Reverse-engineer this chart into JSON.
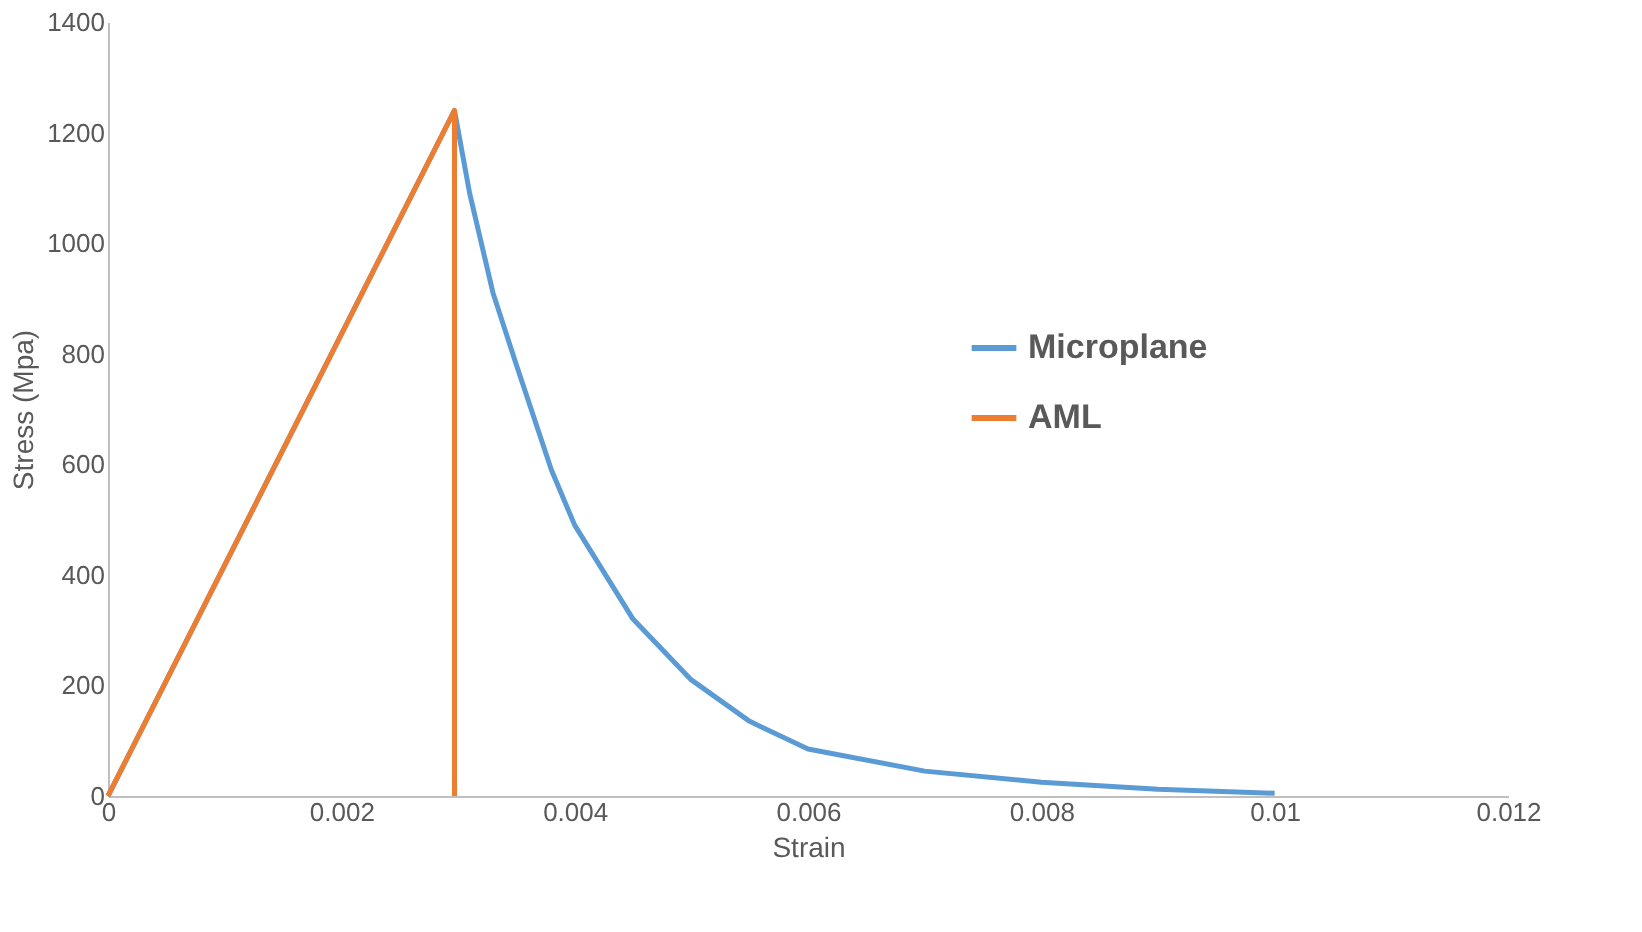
{
  "chart_data": {
    "type": "line",
    "xlabel": "Strain",
    "ylabel": "Stress (Mpa)",
    "xlim": [
      0,
      0.012
    ],
    "xticks": [
      0,
      0.002,
      0.004,
      0.006,
      0.008,
      0.01,
      0.012
    ],
    "ylim": [
      0,
      1400
    ],
    "yticks": [
      0,
      200,
      400,
      600,
      800,
      1000,
      1200,
      1400
    ],
    "grid": false,
    "legend": "right",
    "marker": "none",
    "line_style": "solid",
    "series": [
      {
        "name": "Microplane",
        "color": "#5b9bd5",
        "x": [
          0,
          0.00297,
          0.0031,
          0.0033,
          0.0035,
          0.0038,
          0.004,
          0.0045,
          0.005,
          0.0055,
          0.006,
          0.007,
          0.008,
          0.009,
          0.01
        ],
        "values": [
          0,
          1240,
          1090,
          910,
          780,
          590,
          490,
          320,
          210,
          135,
          85,
          45,
          25,
          12,
          5
        ]
      },
      {
        "name": "AML",
        "color": "#ed7d31",
        "x": [
          0,
          0.00297,
          0.00297
        ],
        "values": [
          0,
          1240,
          0
        ]
      }
    ]
  }
}
